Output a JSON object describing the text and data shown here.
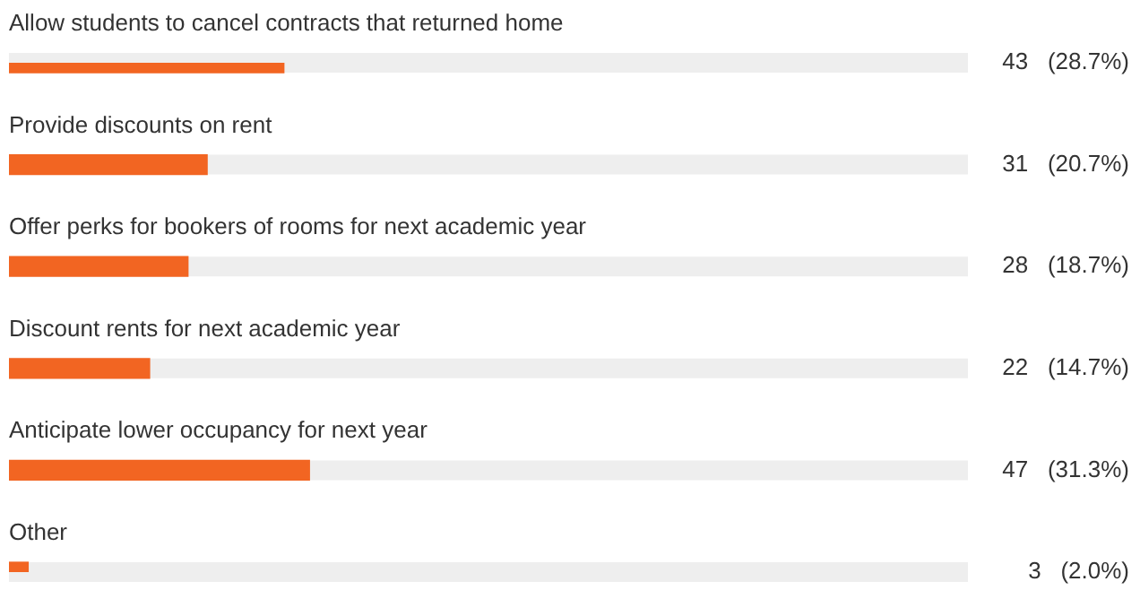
{
  "chart_data": {
    "type": "bar",
    "orientation": "horizontal",
    "categories": [
      "Allow students to cancel contracts that returned home",
      "Provide discounts on rent",
      "Offer perks for bookers of rooms for next academic year",
      "Discount rents for next academic year",
      "Anticipate lower occupancy for next year",
      "Other"
    ],
    "values": [
      43,
      31,
      28,
      22,
      47,
      3
    ],
    "value_labels": [
      "43   (28.7%)",
      "31   (20.7%)",
      "28   (18.7%)",
      "22   (14.7%)",
      "47   (31.3%)",
      "3   (2.0%)"
    ],
    "color": "#f26522",
    "xlim": [
      0,
      150
    ]
  }
}
